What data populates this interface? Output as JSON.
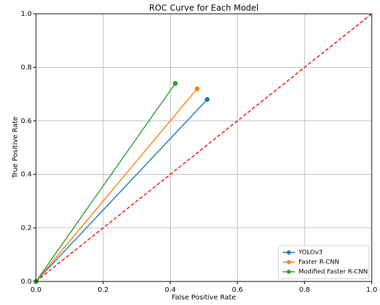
{
  "chart_data": {
    "type": "line",
    "title": "ROC Curve for Each Model",
    "xlabel": "False Positive Rate",
    "ylabel": "True Positive Rate",
    "series": [
      {
        "name": "YOLOv3",
        "color": "#1f77b4",
        "x": [
          0,
          0.51
        ],
        "values": [
          0,
          0.68
        ]
      },
      {
        "name": "Faster R-CNN",
        "color": "#ff7f0e",
        "x": [
          0,
          0.48
        ],
        "values": [
          0,
          0.72
        ]
      },
      {
        "name": "Modified Faster R-CNN",
        "color": "#2ca02c",
        "x": [
          0,
          0.415
        ],
        "values": [
          0,
          0.74
        ]
      }
    ],
    "reference_line": {
      "color": "#ff0000",
      "x": [
        0,
        1
      ],
      "values": [
        0,
        1
      ]
    },
    "xlim": [
      0,
      1
    ],
    "ylim": [
      0,
      1
    ],
    "xticks": [
      {
        "value": 0,
        "label": "0.0"
      },
      0.2,
      0.4,
      0.6,
      0.8,
      {
        "value": 1,
        "label": "1.0"
      }
    ],
    "yticks": [
      {
        "value": 0,
        "label": "0.0"
      },
      0.2,
      0.4,
      0.6,
      0.8,
      {
        "value": 1,
        "label": "1.0"
      }
    ],
    "grid": true,
    "legend": "lower right"
  }
}
